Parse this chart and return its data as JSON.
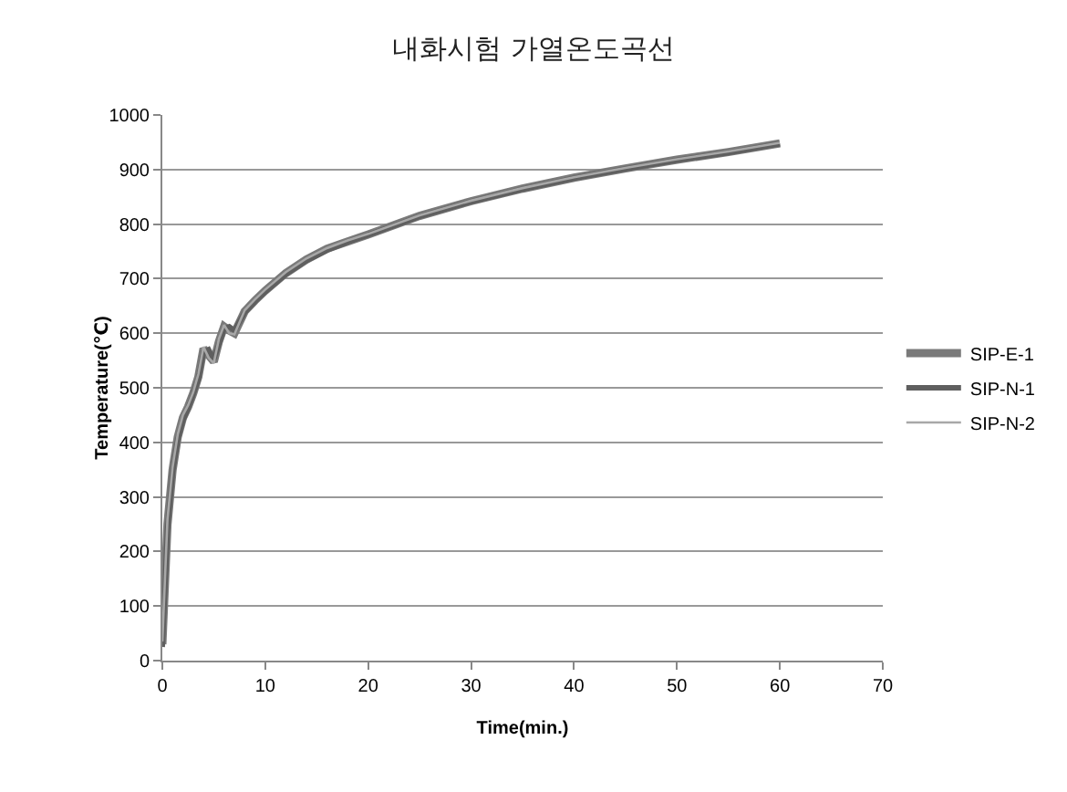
{
  "chart_data": {
    "type": "line",
    "title": "내화시험 가열온도곡선",
    "xlabel": "Time(min.)",
    "ylabel": "Temperature(℃)",
    "x": [
      0,
      0.5,
      1,
      1.5,
      2,
      2.5,
      3,
      3.5,
      4,
      4.5,
      5,
      5.5,
      6,
      6.5,
      7,
      8,
      9,
      10,
      12,
      14,
      16,
      18,
      20,
      25,
      30,
      35,
      40,
      45,
      50,
      55,
      60
    ],
    "series": [
      {
        "name": "SIP-E-1",
        "color": "#7a7a7a",
        "values": [
          30,
          250,
          350,
          410,
          445,
          465,
          490,
          520,
          572,
          560,
          548,
          585,
          612,
          605,
          600,
          640,
          660,
          678,
          710,
          735,
          755,
          768,
          781,
          815,
          842,
          865,
          885,
          902,
          918,
          932,
          948
        ]
      },
      {
        "name": "SIP-N-1",
        "color": "#5f5f5f",
        "values": [
          25,
          240,
          345,
          405,
          440,
          462,
          488,
          515,
          565,
          570,
          552,
          580,
          608,
          612,
          605,
          638,
          658,
          676,
          708,
          733,
          752,
          767,
          780,
          814,
          841,
          864,
          884,
          901,
          917,
          931,
          947
        ]
      },
      {
        "name": "SIP-N-2",
        "color": "#a8a8a8",
        "values": [
          35,
          260,
          355,
          415,
          450,
          468,
          492,
          525,
          575,
          555,
          545,
          590,
          615,
          600,
          598,
          642,
          662,
          680,
          712,
          737,
          756,
          770,
          782,
          816,
          843,
          866,
          886,
          903,
          919,
          933,
          949
        ]
      }
    ],
    "xlim": [
      0,
      70
    ],
    "xticks": [
      0,
      10,
      20,
      30,
      40,
      50,
      60,
      70
    ],
    "ylim": [
      0,
      1000
    ],
    "yticks": [
      0,
      100,
      200,
      300,
      400,
      500,
      600,
      700,
      800,
      900,
      1000
    ],
    "grid": "y",
    "legend": "right",
    "marker": "none",
    "line_style": "solid"
  }
}
